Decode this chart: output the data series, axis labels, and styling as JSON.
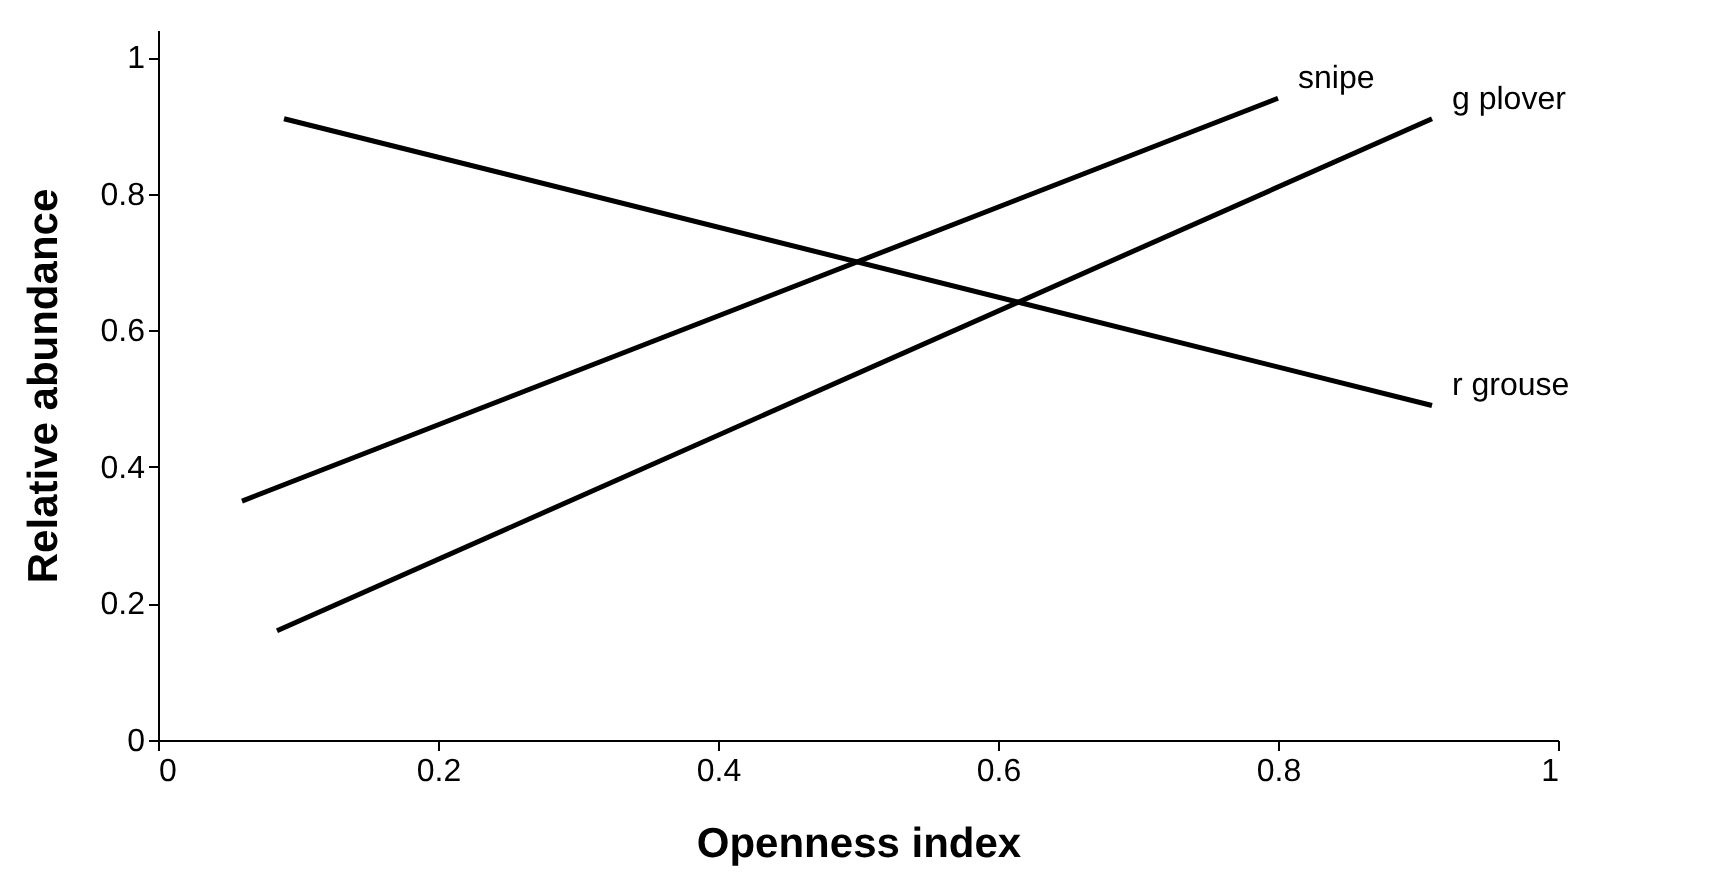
{
  "chart_data": {
    "type": "line",
    "xlabel": "Openness index",
    "ylabel": "Relative abundance",
    "xlim": [
      0,
      1
    ],
    "ylim": [
      0,
      1.04
    ],
    "xticks": [
      0,
      0.2,
      0.4,
      0.6,
      0.8,
      1
    ],
    "yticks": [
      0,
      0.2,
      0.4,
      0.6,
      0.8,
      1
    ],
    "grid": false,
    "legend": false,
    "marker": "none",
    "line_style": "solid",
    "series": [
      {
        "name": "snipe",
        "color": "#000000",
        "x": [
          0.06,
          0.8
        ],
        "values": [
          0.35,
          0.94
        ]
      },
      {
        "name": "g plover",
        "color": "#000000",
        "x": [
          0.085,
          0.91
        ],
        "values": [
          0.16,
          0.91
        ]
      },
      {
        "name": "r grouse",
        "color": "#000000",
        "x": [
          0.09,
          0.91
        ],
        "values": [
          0.91,
          0.49
        ]
      }
    ]
  }
}
